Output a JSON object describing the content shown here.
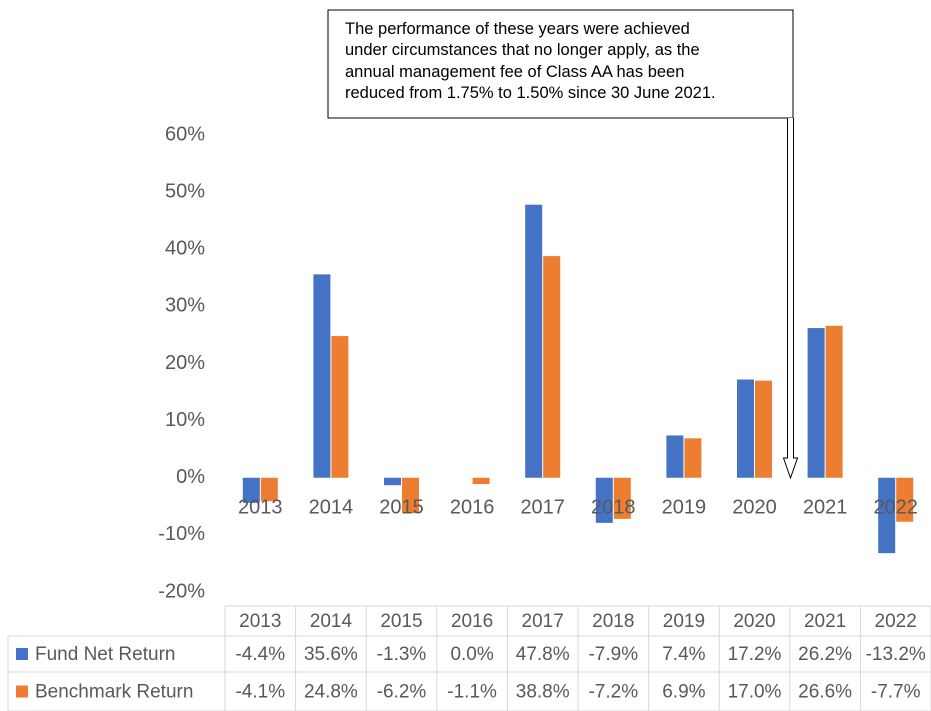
{
  "chart_data": {
    "type": "bar",
    "annotation": [
      "The performance of these years were achieved",
      "under circumstances that no longer apply, as the",
      "annual management fee of Class AA has been",
      "reduced from 1.75% to 1.50% since 30 June 2021."
    ],
    "categories": [
      "2013",
      "2014",
      "2015",
      "2016",
      "2017",
      "2018",
      "2019",
      "2020",
      "2021",
      "2022"
    ],
    "series": [
      {
        "name": "Fund Net Return",
        "color": "#4472c4",
        "values": [
          -4.4,
          35.6,
          -1.3,
          0.0,
          47.8,
          -7.9,
          7.4,
          17.2,
          26.2,
          -13.2
        ],
        "value_labels": [
          "-4.4%",
          "35.6%",
          "-1.3%",
          "0.0%",
          "47.8%",
          "-7.9%",
          "7.4%",
          "17.2%",
          "26.2%",
          "-13.2%"
        ]
      },
      {
        "name": "Benchmark Return",
        "color": "#ed7d31",
        "values": [
          -4.1,
          24.8,
          -6.2,
          -1.1,
          38.8,
          -7.2,
          6.9,
          17.0,
          26.6,
          -7.7
        ],
        "value_labels": [
          "-4.1%",
          "24.8%",
          "-6.2%",
          "-1.1%",
          "38.8%",
          "-7.2%",
          "6.9%",
          "17.0%",
          "26.6%",
          "-7.7%"
        ]
      }
    ],
    "ylim": [
      -20,
      60
    ],
    "yticks": [
      {
        "value": -20,
        "label": "-20%"
      },
      {
        "value": -10,
        "label": "-10%"
      },
      {
        "value": 0,
        "label": "0%"
      },
      {
        "value": 10,
        "label": "10%"
      },
      {
        "value": 20,
        "label": "20%"
      },
      {
        "value": 30,
        "label": "30%"
      },
      {
        "value": 40,
        "label": "40%"
      },
      {
        "value": 50,
        "label": "50%"
      },
      {
        "value": 60,
        "label": "60%"
      }
    ],
    "grid": false
  }
}
